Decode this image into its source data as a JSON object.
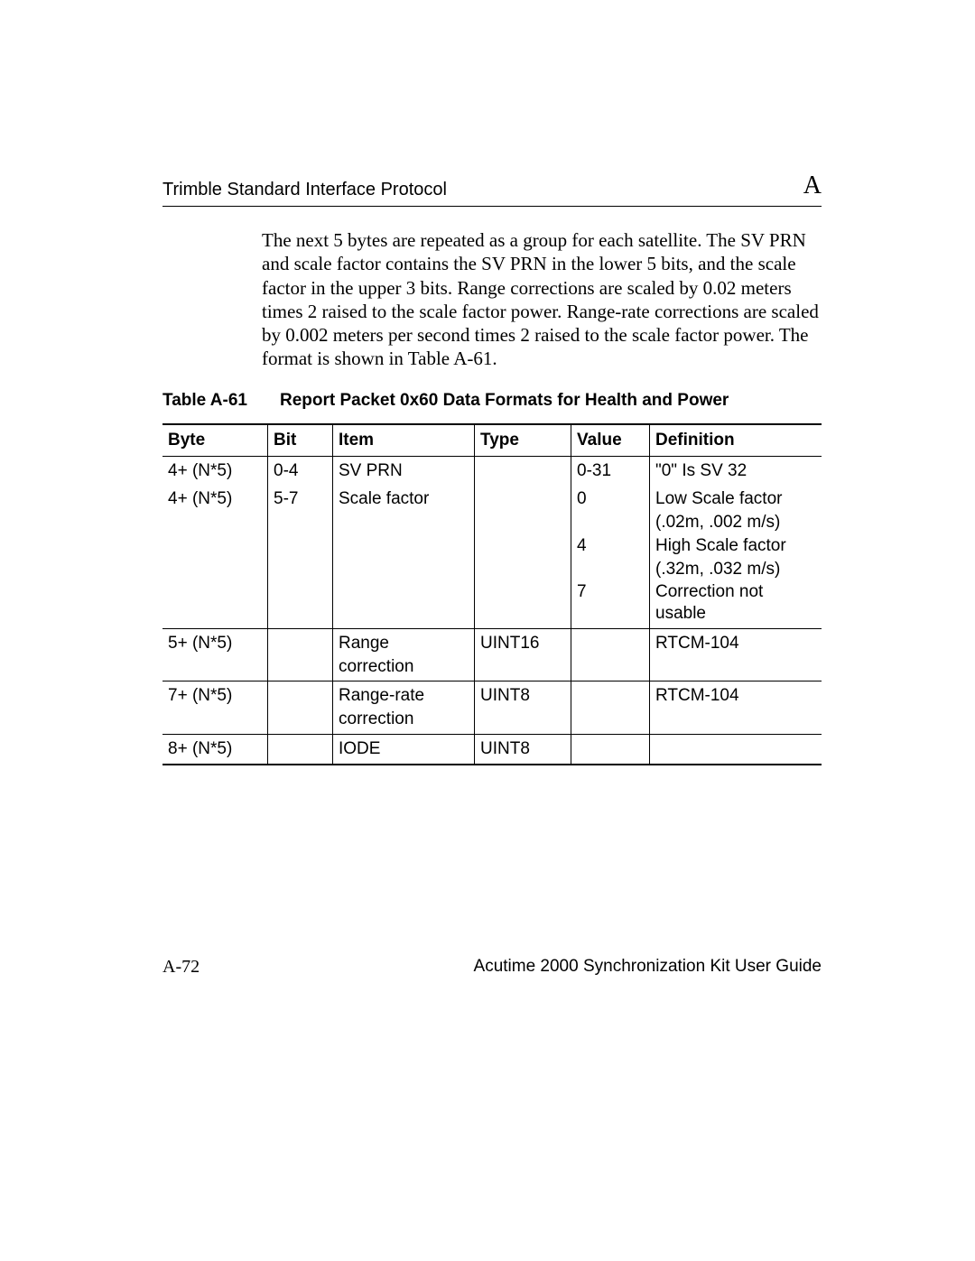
{
  "header": {
    "left": "Trimble Standard Interface Protocol",
    "right": "A"
  },
  "paragraph": "The next 5 bytes are repeated as a group for each satellite. The SV PRN and scale factor contains the SV PRN in the lower 5 bits, and the scale factor in the upper 3 bits. Range corrections are scaled by 0.02 meters times 2 raised to the scale factor power. Range-rate corrections are scaled by 0.002 meters per second times 2 raised to the scale factor power. The format is shown in Table A-61.",
  "table": {
    "caption_label": "Table A-61",
    "caption_title": "Report Packet 0x60 Data Formats for Health and Power",
    "columns": [
      "Byte",
      "Bit",
      "Item",
      "Type",
      "Value",
      "Definition"
    ],
    "rows": [
      {
        "byte": "4+ (N*5)",
        "bit": "0-4",
        "item": "SV PRN",
        "type": "",
        "value": "0-31",
        "def": "\"0\" Is SV 32",
        "sep": false
      },
      {
        "byte": "4+ (N*5)",
        "bit": "5-7",
        "item": "Scale factor",
        "type": "",
        "value_lines": [
          "0",
          "",
          "4",
          "",
          "7"
        ],
        "def_lines": [
          "Low Scale factor",
          "(.02m, .002 m/s)",
          "High Scale factor",
          "(.32m, .032 m/s)",
          "Correction not usable"
        ],
        "sep": false
      },
      {
        "byte": "5+ (N*5)",
        "bit": "",
        "item_lines": [
          "Range",
          "correction"
        ],
        "type": "UINT16",
        "value": "",
        "def": "RTCM-104",
        "sep": true
      },
      {
        "byte": "7+ (N*5)",
        "bit": "",
        "item_lines": [
          "Range-rate",
          "correction"
        ],
        "type": "UINT8",
        "value": "",
        "def": "RTCM-104",
        "sep": true
      },
      {
        "byte": "8+ (N*5)",
        "bit": "",
        "item": "IODE",
        "type": "UINT8",
        "value": "",
        "def": "",
        "sep": true
      }
    ]
  },
  "footer": {
    "page": "A-72",
    "guide": "Acutime 2000 Synchronization Kit User Guide"
  }
}
